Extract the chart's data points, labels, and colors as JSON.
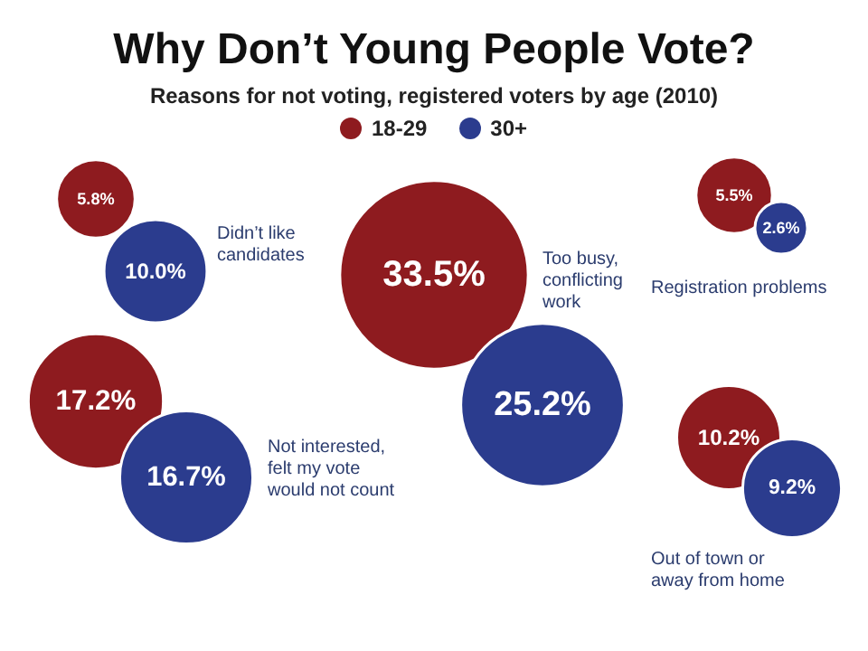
{
  "chart_data": {
    "type": "other",
    "title": "Why Don’t Young People Vote?",
    "subtitle": "Reasons for not voting, registered voters by age (2010)",
    "legend": "top",
    "categories": [
      "Didn’t like\ncandidates",
      "Not interested,\nfelt my vote\nwould not count",
      "Too busy,\nconflicting\nwork",
      "Registration problems",
      "Out of town or\naway from home"
    ],
    "series": [
      {
        "name": "18-29",
        "color": "#8e1b1f",
        "values": [
          5.8,
          17.2,
          33.5,
          5.5,
          10.2
        ],
        "value_labels": [
          "5.8%",
          "17.2%",
          "33.5%",
          "5.5%",
          "10.2%"
        ]
      },
      {
        "name": "30+",
        "color": "#2b3c8e",
        "values": [
          10.0,
          16.7,
          25.2,
          2.6,
          9.2
        ],
        "value_labels": [
          "10.0%",
          "16.7%",
          "25.2%",
          "2.6%",
          "9.2%"
        ]
      }
    ]
  }
}
